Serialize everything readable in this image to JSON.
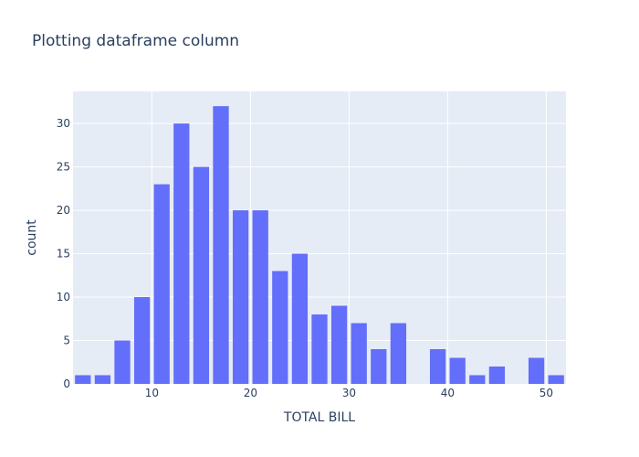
{
  "chart_data": {
    "type": "bar",
    "title": "Plotting dataframe column",
    "xlabel": "TOTAL BILL",
    "ylabel": "count",
    "xlim": [
      2,
      52
    ],
    "ylim": [
      0,
      33.7
    ],
    "x_ticks": [
      10,
      20,
      30,
      40,
      50
    ],
    "y_ticks": [
      0,
      5,
      10,
      15,
      20,
      25,
      30
    ],
    "bin_width": 2,
    "bin_starts": [
      2,
      4,
      6,
      8,
      10,
      12,
      14,
      16,
      18,
      20,
      22,
      24,
      26,
      28,
      30,
      32,
      34,
      36,
      38,
      40,
      42,
      44,
      46,
      48,
      50
    ],
    "values": [
      1,
      1,
      5,
      10,
      23,
      30,
      25,
      32,
      20,
      20,
      13,
      15,
      8,
      9,
      7,
      4,
      7,
      0,
      4,
      3,
      1,
      2,
      0,
      3,
      1
    ],
    "bar_color": "#636efa",
    "plot_background": "#e5ecf6",
    "grid": true
  }
}
